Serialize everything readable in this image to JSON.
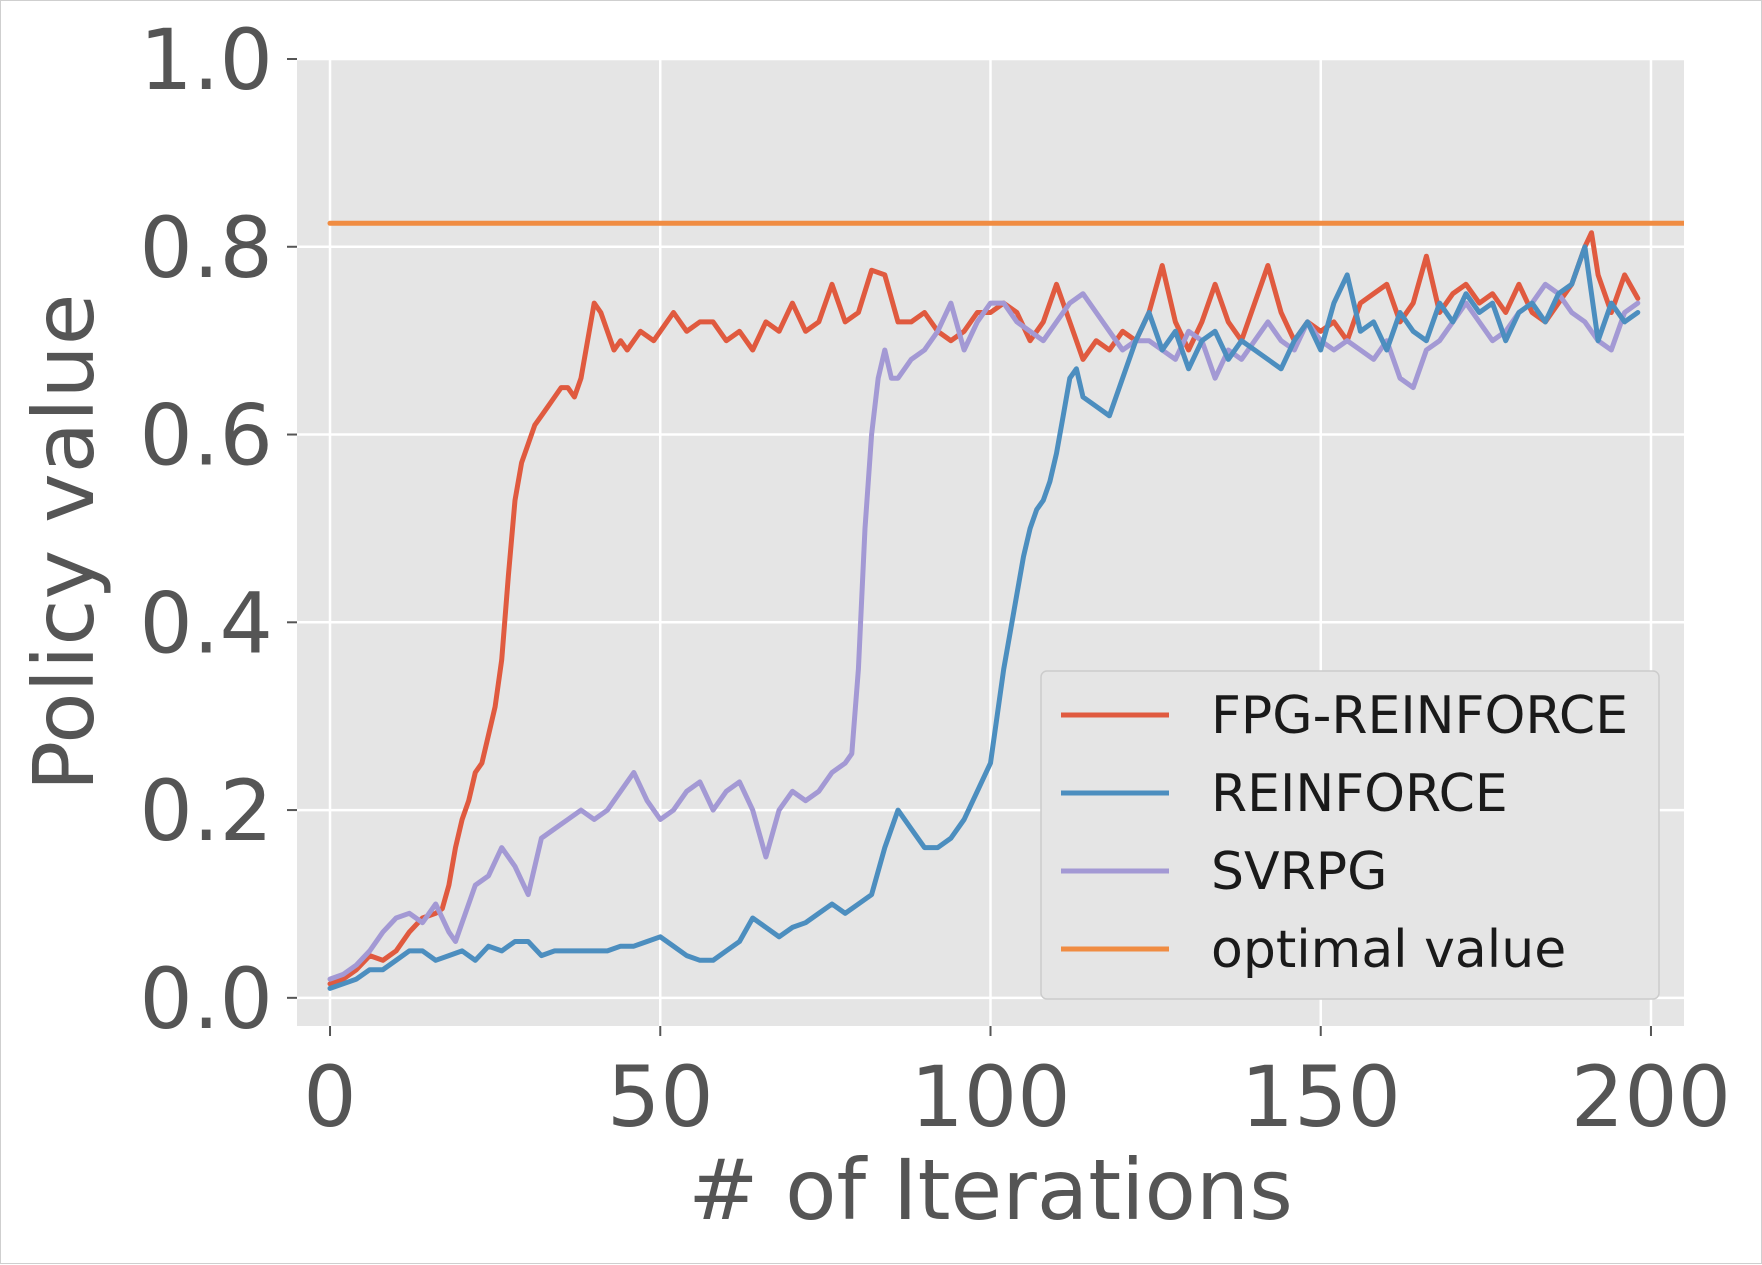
{
  "chart_data": {
    "type": "line",
    "xlabel": "# of Iterations",
    "ylabel": "Policy value",
    "xlim": [
      -5,
      205
    ],
    "ylim": [
      -0.03,
      1.0
    ],
    "xticks": [
      0,
      50,
      100,
      150,
      200
    ],
    "xtick_labels": [
      "0",
      "50",
      "100",
      "150",
      "200"
    ],
    "yticks": [
      0.0,
      0.2,
      0.4,
      0.6,
      0.8,
      1.0
    ],
    "ytick_labels": [
      "0.0",
      "0.2",
      "0.4",
      "0.6",
      "0.8",
      "1.0"
    ],
    "grid": true,
    "legend_position": "lower-right",
    "series": [
      {
        "name": "FPG-REINFORCE",
        "color": "#e05a3f",
        "x": [
          0,
          2,
          4,
          6,
          8,
          10,
          12,
          14,
          16,
          17,
          18,
          19,
          20,
          21,
          22,
          23,
          24,
          25,
          26,
          27,
          28,
          29,
          30,
          31,
          32,
          33,
          34,
          35,
          36,
          37,
          38,
          39,
          40,
          41,
          42,
          43,
          44,
          45,
          47,
          49,
          50,
          52,
          54,
          56,
          58,
          60,
          62,
          64,
          66,
          68,
          70,
          72,
          74,
          76,
          78,
          80,
          82,
          84,
          86,
          88,
          90,
          92,
          94,
          96,
          98,
          100,
          102,
          104,
          106,
          108,
          110,
          112,
          114,
          116,
          118,
          120,
          122,
          124,
          126,
          128,
          130,
          132,
          134,
          136,
          138,
          140,
          142,
          144,
          146,
          148,
          150,
          152,
          154,
          156,
          158,
          160,
          162,
          164,
          166,
          168,
          170,
          172,
          174,
          176,
          178,
          180,
          182,
          184,
          186,
          188,
          190,
          191,
          192,
          194,
          196,
          198
        ],
        "y": [
          0.015,
          0.02,
          0.03,
          0.045,
          0.04,
          0.05,
          0.07,
          0.085,
          0.09,
          0.095,
          0.12,
          0.16,
          0.19,
          0.21,
          0.24,
          0.25,
          0.28,
          0.31,
          0.36,
          0.45,
          0.53,
          0.57,
          0.59,
          0.61,
          0.62,
          0.63,
          0.64,
          0.65,
          0.65,
          0.64,
          0.66,
          0.7,
          0.74,
          0.73,
          0.71,
          0.69,
          0.7,
          0.69,
          0.71,
          0.7,
          0.71,
          0.73,
          0.71,
          0.72,
          0.72,
          0.7,
          0.71,
          0.69,
          0.72,
          0.71,
          0.74,
          0.71,
          0.72,
          0.76,
          0.72,
          0.73,
          0.775,
          0.77,
          0.72,
          0.72,
          0.73,
          0.71,
          0.7,
          0.71,
          0.73,
          0.73,
          0.74,
          0.73,
          0.7,
          0.72,
          0.76,
          0.72,
          0.68,
          0.7,
          0.69,
          0.71,
          0.7,
          0.73,
          0.78,
          0.72,
          0.69,
          0.72,
          0.76,
          0.72,
          0.7,
          0.74,
          0.78,
          0.73,
          0.7,
          0.72,
          0.71,
          0.72,
          0.7,
          0.74,
          0.75,
          0.76,
          0.72,
          0.74,
          0.79,
          0.73,
          0.75,
          0.76,
          0.74,
          0.75,
          0.73,
          0.76,
          0.73,
          0.72,
          0.74,
          0.76,
          0.8,
          0.815,
          0.77,
          0.73,
          0.77,
          0.745
        ]
      },
      {
        "name": "REINFORCE",
        "color": "#4c8ebf",
        "x": [
          0,
          2,
          4,
          6,
          8,
          10,
          12,
          14,
          16,
          18,
          20,
          22,
          24,
          26,
          28,
          30,
          32,
          34,
          36,
          38,
          40,
          42,
          44,
          46,
          48,
          50,
          52,
          54,
          56,
          58,
          60,
          62,
          64,
          66,
          68,
          70,
          72,
          74,
          76,
          78,
          80,
          82,
          84,
          86,
          88,
          90,
          92,
          94,
          96,
          98,
          100,
          101,
          102,
          103,
          104,
          105,
          106,
          107,
          108,
          109,
          110,
          111,
          112,
          113,
          114,
          116,
          118,
          120,
          122,
          124,
          126,
          128,
          130,
          132,
          134,
          136,
          138,
          140,
          142,
          144,
          146,
          148,
          150,
          152,
          154,
          156,
          158,
          160,
          162,
          164,
          166,
          168,
          170,
          172,
          174,
          176,
          178,
          180,
          182,
          184,
          186,
          188,
          190,
          192,
          194,
          196,
          198
        ],
        "y": [
          0.01,
          0.015,
          0.02,
          0.03,
          0.03,
          0.04,
          0.05,
          0.05,
          0.04,
          0.045,
          0.05,
          0.04,
          0.055,
          0.05,
          0.06,
          0.06,
          0.045,
          0.05,
          0.05,
          0.05,
          0.05,
          0.05,
          0.055,
          0.055,
          0.06,
          0.065,
          0.055,
          0.045,
          0.04,
          0.04,
          0.05,
          0.06,
          0.085,
          0.075,
          0.065,
          0.075,
          0.08,
          0.09,
          0.1,
          0.09,
          0.1,
          0.11,
          0.16,
          0.2,
          0.18,
          0.16,
          0.16,
          0.17,
          0.19,
          0.22,
          0.25,
          0.3,
          0.35,
          0.39,
          0.43,
          0.47,
          0.5,
          0.52,
          0.53,
          0.55,
          0.58,
          0.62,
          0.66,
          0.67,
          0.64,
          0.63,
          0.62,
          0.66,
          0.7,
          0.73,
          0.69,
          0.71,
          0.67,
          0.7,
          0.71,
          0.68,
          0.7,
          0.69,
          0.68,
          0.67,
          0.7,
          0.72,
          0.69,
          0.74,
          0.77,
          0.71,
          0.72,
          0.69,
          0.73,
          0.71,
          0.7,
          0.74,
          0.72,
          0.75,
          0.73,
          0.74,
          0.7,
          0.73,
          0.74,
          0.72,
          0.75,
          0.76,
          0.8,
          0.7,
          0.74,
          0.72,
          0.73
        ]
      },
      {
        "name": "SVRPG",
        "color": "#a399d4",
        "x": [
          0,
          2,
          4,
          6,
          8,
          10,
          12,
          14,
          16,
          18,
          19,
          20,
          22,
          24,
          26,
          28,
          30,
          32,
          34,
          36,
          38,
          40,
          42,
          44,
          46,
          48,
          50,
          52,
          54,
          56,
          58,
          60,
          62,
          64,
          66,
          68,
          70,
          72,
          74,
          76,
          78,
          79,
          80,
          81,
          82,
          83,
          84,
          85,
          86,
          88,
          90,
          92,
          94,
          96,
          98,
          100,
          102,
          104,
          106,
          108,
          110,
          112,
          114,
          116,
          118,
          120,
          122,
          124,
          126,
          128,
          130,
          132,
          134,
          136,
          138,
          140,
          142,
          144,
          146,
          148,
          150,
          152,
          154,
          156,
          158,
          160,
          162,
          164,
          166,
          168,
          170,
          172,
          174,
          176,
          178,
          180,
          182,
          184,
          186,
          188,
          190,
          192,
          194,
          196,
          198
        ],
        "y": [
          0.02,
          0.025,
          0.035,
          0.05,
          0.07,
          0.085,
          0.09,
          0.08,
          0.1,
          0.07,
          0.06,
          0.08,
          0.12,
          0.13,
          0.16,
          0.14,
          0.11,
          0.17,
          0.18,
          0.19,
          0.2,
          0.19,
          0.2,
          0.22,
          0.24,
          0.21,
          0.19,
          0.2,
          0.22,
          0.23,
          0.2,
          0.22,
          0.23,
          0.2,
          0.15,
          0.2,
          0.22,
          0.21,
          0.22,
          0.24,
          0.25,
          0.26,
          0.35,
          0.5,
          0.6,
          0.66,
          0.69,
          0.66,
          0.66,
          0.68,
          0.69,
          0.71,
          0.74,
          0.69,
          0.72,
          0.74,
          0.74,
          0.72,
          0.71,
          0.7,
          0.72,
          0.74,
          0.75,
          0.73,
          0.71,
          0.69,
          0.7,
          0.7,
          0.69,
          0.68,
          0.71,
          0.7,
          0.66,
          0.69,
          0.68,
          0.7,
          0.72,
          0.7,
          0.69,
          0.72,
          0.7,
          0.69,
          0.7,
          0.69,
          0.68,
          0.7,
          0.66,
          0.65,
          0.69,
          0.7,
          0.72,
          0.74,
          0.72,
          0.7,
          0.71,
          0.73,
          0.74,
          0.76,
          0.75,
          0.73,
          0.72,
          0.7,
          0.69,
          0.73,
          0.74
        ]
      },
      {
        "name": "optimal value",
        "color": "#f08c42",
        "x": [
          0,
          205
        ],
        "y": [
          0.825,
          0.825
        ]
      }
    ]
  }
}
